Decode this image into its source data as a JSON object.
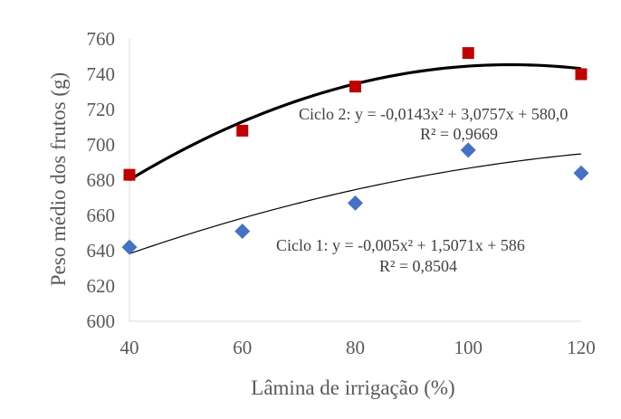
{
  "chart_data": {
    "type": "scatter",
    "xlabel": "Lâmina de irrigação (%)",
    "ylabel": "Peso médio dos frutos (g)",
    "xlim": [
      40,
      120
    ],
    "ylim": [
      600,
      760
    ],
    "x_ticks": [
      40,
      60,
      80,
      100,
      120
    ],
    "x_tick_labels": [
      "40",
      "60",
      "80",
      "100",
      "120"
    ],
    "y_ticks": [
      600,
      620,
      640,
      660,
      680,
      700,
      720,
      740,
      760
    ],
    "y_tick_labels": [
      "600",
      "620",
      "640",
      "660",
      "680",
      "700",
      "720",
      "740",
      "760"
    ],
    "grid": false,
    "series": [
      {
        "name": "Ciclo 1",
        "marker": "diamond",
        "color": "#4472C4",
        "x": [
          40,
          60,
          80,
          100,
          120
        ],
        "y": [
          642,
          651,
          667,
          697,
          684
        ],
        "trendline": {
          "type": "polynomial",
          "a": -0.005,
          "b": 1.5071,
          "c": 586,
          "color": "#000000"
        },
        "equation": "Ciclo 1: y = -0,005x² + 1,5071x + 586",
        "r2": "R² = 0,8504"
      },
      {
        "name": "Ciclo 2",
        "marker": "square",
        "color": "#C00000",
        "x": [
          40,
          60,
          80,
          100,
          120
        ],
        "y": [
          683,
          708,
          733,
          752,
          740
        ],
        "trendline": {
          "type": "polynomial",
          "a": -0.0143,
          "b": 3.0757,
          "c": 580.0,
          "color": "#000000"
        },
        "equation": "Ciclo 2: y = -0,0143x² + 3,0757x + 580,0",
        "r2": "R² = 0,9669"
      }
    ]
  }
}
